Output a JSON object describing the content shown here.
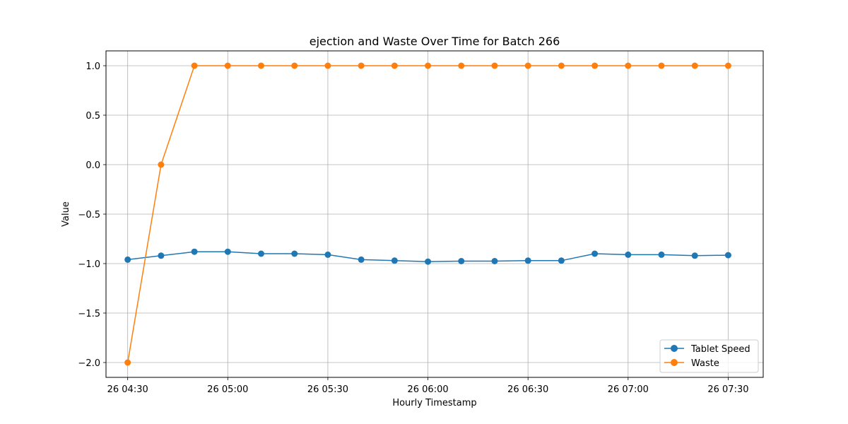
{
  "chart_data": {
    "type": "line",
    "title": "ejection and Waste Over Time for Batch 266",
    "xlabel": "Hourly Timestamp",
    "ylabel": "Value",
    "x": [
      "04:30",
      "04:40",
      "04:50",
      "05:00",
      "05:10",
      "05:20",
      "05:30",
      "05:40",
      "05:50",
      "06:00",
      "06:10",
      "06:20",
      "06:30",
      "06:40",
      "06:50",
      "07:00",
      "07:10",
      "07:20",
      "07:30"
    ],
    "x_minutes_from_0430": [
      0,
      10,
      20,
      30,
      40,
      50,
      60,
      70,
      80,
      90,
      100,
      110,
      120,
      130,
      140,
      150,
      160,
      170,
      180
    ],
    "xlim_minutes": [
      -6.5,
      190.5
    ],
    "xticks": [
      {
        "minutes": 0,
        "label": "26 04:30"
      },
      {
        "minutes": 30,
        "label": "26 05:00"
      },
      {
        "minutes": 60,
        "label": "26 05:30"
      },
      {
        "minutes": 90,
        "label": "26 06:00"
      },
      {
        "minutes": 120,
        "label": "26 06:30"
      },
      {
        "minutes": 150,
        "label": "26 07:00"
      },
      {
        "minutes": 180,
        "label": "26 07:30"
      }
    ],
    "ylim": [
      -2.15,
      1.15
    ],
    "yticks": [
      {
        "value": 1.0,
        "label": "1.0"
      },
      {
        "value": 0.5,
        "label": "0.5"
      },
      {
        "value": 0.0,
        "label": "0.0"
      },
      {
        "value": -0.5,
        "label": "−0.5"
      },
      {
        "value": -1.0,
        "label": "−1.0"
      },
      {
        "value": -1.5,
        "label": "−1.5"
      },
      {
        "value": -2.0,
        "label": "−2.0"
      }
    ],
    "grid": true,
    "legend_position": "lower-right",
    "series": [
      {
        "name": "Tablet Speed",
        "color": "#1f77b4",
        "values": [
          -0.96,
          -0.92,
          -0.88,
          -0.88,
          -0.9,
          -0.9,
          -0.91,
          -0.96,
          -0.97,
          -0.98,
          -0.975,
          -0.975,
          -0.97,
          -0.97,
          -0.9,
          -0.91,
          -0.91,
          -0.92,
          -0.915
        ]
      },
      {
        "name": "Waste",
        "color": "#ff7f0e",
        "values": [
          -2.0,
          0.0,
          1.0,
          1.0,
          1.0,
          1.0,
          1.0,
          1.0,
          1.0,
          1.0,
          1.0,
          1.0,
          1.0,
          1.0,
          1.0,
          1.0,
          1.0,
          1.0,
          1.0
        ]
      }
    ]
  }
}
